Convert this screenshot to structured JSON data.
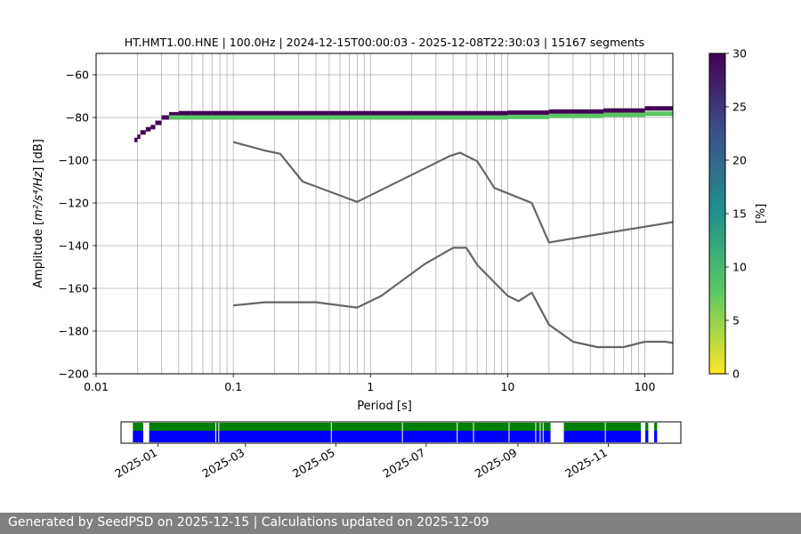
{
  "chart_data": [
    {
      "type": "heatmap",
      "title": "HT.HMT1.00.HNE | 100.0Hz | 2024-12-15T00:00:03 - 2025-12-08T22:30:03 | 15167 segments",
      "xlabel": "Period [s]",
      "ylabel_prefix": "Amplitude [",
      "ylabel_math": "m²/s⁴/Hz",
      "ylabel_suffix": "] [dB]",
      "x_scale": "log",
      "xlim": [
        0.01,
        160
      ],
      "ylim": [
        -200,
        -50
      ],
      "x_ticks": [
        {
          "value": 0.01,
          "label": "0.01"
        },
        {
          "value": 0.1,
          "label": "0.1"
        },
        {
          "value": 1,
          "label": "1"
        },
        {
          "value": 10,
          "label": "10"
        },
        {
          "value": 100,
          "label": "100"
        }
      ],
      "y_ticks": [
        {
          "value": -60,
          "label": "−60"
        },
        {
          "value": -80,
          "label": "−80"
        },
        {
          "value": -100,
          "label": "−100"
        },
        {
          "value": -120,
          "label": "−120"
        },
        {
          "value": -140,
          "label": "−140"
        },
        {
          "value": -160,
          "label": "−160"
        },
        {
          "value": -180,
          "label": "−180"
        },
        {
          "value": -200,
          "label": "−200"
        }
      ],
      "grid": true,
      "colorbar": {
        "label": "[%]",
        "range": [
          0,
          30
        ],
        "ticks": [
          "0",
          "5",
          "10",
          "15",
          "20",
          "25",
          "30"
        ],
        "colormap": "viridis_r"
      },
      "series": [
        {
          "name": "",
          "x": [
            0.1,
            0.17,
            0.22,
            0.32,
            0.8,
            3.8,
            4.5,
            6.0,
            8.0,
            15.0,
            20.0,
            160.0
          ],
          "y": [
            -91.5,
            -95.5,
            -97,
            -110,
            -119.5,
            -98,
            -96.5,
            -100.5,
            -113,
            -120,
            -138.5,
            -129
          ]
        },
        {
          "name": "",
          "x": [
            0.1,
            0.17,
            0.4,
            0.8,
            1.2,
            2.5,
            4.0,
            5.0,
            6.0,
            10.0,
            12.0,
            15.0,
            20.0,
            30.0,
            45.0,
            70.0,
            100.0,
            140.0,
            160.0
          ],
          "y": [
            -168,
            -166.5,
            -166.5,
            -169,
            -163.5,
            -148.5,
            -141,
            -141,
            -149,
            -163.5,
            -166,
            -162,
            -177,
            -185,
            -187.5,
            -187.5,
            -185,
            -185,
            -185.5
          ]
        }
      ],
      "density_bands": [
        {
          "x": [
            0.019,
            0.02,
            0.021,
            0.023,
            0.025,
            0.027,
            0.03,
            0.034,
            0.04,
            0.05,
            0.07,
            0.1,
            0.2,
            0.5,
            1,
            2,
            5,
            10,
            20,
            50,
            100,
            160
          ],
          "y": [
            -91,
            -90,
            -88,
            -86,
            -85,
            -84,
            -81,
            -79,
            -78,
            -78,
            -78,
            -78,
            -78,
            -78,
            -78,
            -78,
            -78,
            -78,
            -77.5,
            -77,
            -76.5,
            -75
          ],
          "level": 30
        },
        {
          "x": [
            0.034,
            0.05,
            0.1,
            0.3,
            1,
            3,
            10,
            20,
            50,
            100,
            160
          ],
          "y": [
            -80,
            -80,
            -80,
            -80,
            -80,
            -80,
            -80,
            -79.5,
            -79,
            -78.5,
            -78
          ],
          "level": 8
        }
      ]
    },
    {
      "type": "bar",
      "title": "",
      "xlabel": "",
      "ylabel": "",
      "x_tick_labels": [
        "2025-01",
        "2025-03",
        "2025-05",
        "2025-07",
        "2025-09",
        "2025-11"
      ],
      "x_tick_dates": [
        "2025-01-01",
        "2025-03-01",
        "2025-05-01",
        "2025-07-01",
        "2025-09-01",
        "2025-11-01"
      ],
      "xlim": [
        "2024-12-07",
        "2025-12-20"
      ],
      "rows": [
        {
          "name": "",
          "color": "#008000"
        },
        {
          "name": "",
          "color": "#0000ff"
        }
      ],
      "coverage": [
        {
          "start": "2024-12-15",
          "end": "2024-12-22"
        },
        {
          "start": "2024-12-26",
          "end": "2025-09-23"
        },
        {
          "start": "2025-10-02",
          "end": "2025-11-23"
        },
        {
          "start": "2025-11-26",
          "end": "2025-11-28"
        },
        {
          "start": "2025-12-02",
          "end": "2025-12-04"
        }
      ],
      "gaps": [
        "2025-02-09",
        "2025-02-11",
        "2025-04-28",
        "2025-06-15",
        "2025-07-22",
        "2025-08-02",
        "2025-08-26",
        "2025-09-13",
        "2025-09-16",
        "2025-09-18",
        "2025-10-30"
      ]
    }
  ],
  "footer": {
    "text": "Generated by SeedPSD on 2025-12-15 | Calculations updated on 2025-12-09"
  }
}
